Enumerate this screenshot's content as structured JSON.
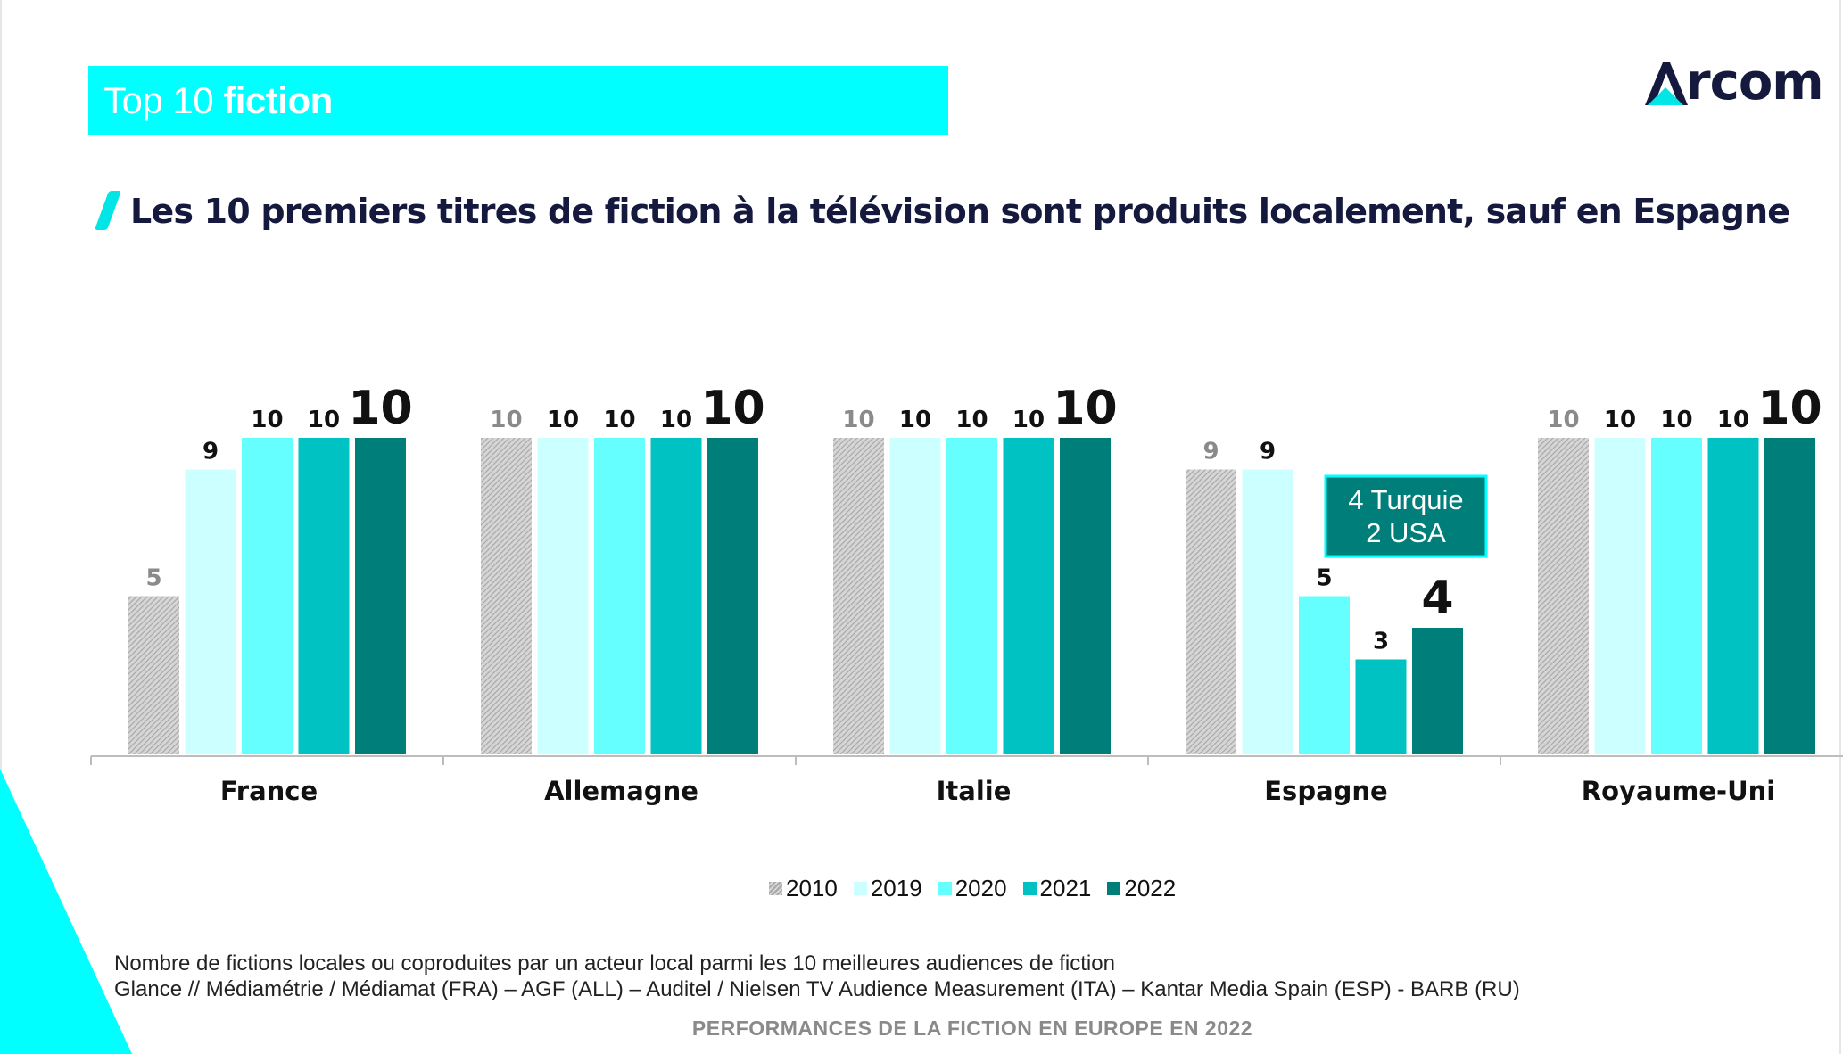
{
  "header": {
    "title_light": "Top 10 ",
    "title_bold": "fiction"
  },
  "logo": {
    "text": "rcom",
    "icon": "arcom-a-logo-icon"
  },
  "subtitle": "Les 10 premiers titres de fiction à la télévision sont produits localement, sauf en Espagne",
  "chart_data": {
    "type": "bar",
    "categories": [
      "France",
      "Allemagne",
      "Italie",
      "Espagne",
      "Royaume-Uni"
    ],
    "series": [
      {
        "name": "2010",
        "values": [
          5,
          10,
          10,
          9,
          10
        ]
      },
      {
        "name": "2019",
        "values": [
          9,
          10,
          10,
          9,
          10
        ]
      },
      {
        "name": "2020",
        "values": [
          10,
          10,
          10,
          5,
          10
        ]
      },
      {
        "name": "2021",
        "values": [
          10,
          10,
          10,
          3,
          10
        ]
      },
      {
        "name": "2022",
        "values": [
          10,
          10,
          10,
          4,
          10
        ]
      }
    ],
    "ylim": [
      0,
      10
    ],
    "grid": false,
    "legend": "bottom-center",
    "annotation": {
      "category": "Espagne",
      "lines": [
        "4 Turquie",
        "2 USA"
      ]
    },
    "colors": [
      "#c8c8c8",
      "#CCFFFF",
      "#66FFFF",
      "#00C2C2",
      "#007E7A"
    ],
    "value_label_colors": [
      "#8a8a8a",
      "#111111",
      "#111111",
      "#111111",
      "#111111"
    ]
  },
  "footnote": {
    "line1": "Nombre de fictions locales ou coproduites par un acteur local parmi les 10 meilleures audiences de fiction",
    "line2": "Glance // Médiamétrie / Médiamat (FRA) – AGF (ALL) – Auditel / Nielsen TV Audience Measurement (ITA) – Kantar Media Spain (ESP) - BARB (RU)"
  },
  "footer": "PERFORMANCES DE LA FICTION EN EUROPE EN 2022"
}
